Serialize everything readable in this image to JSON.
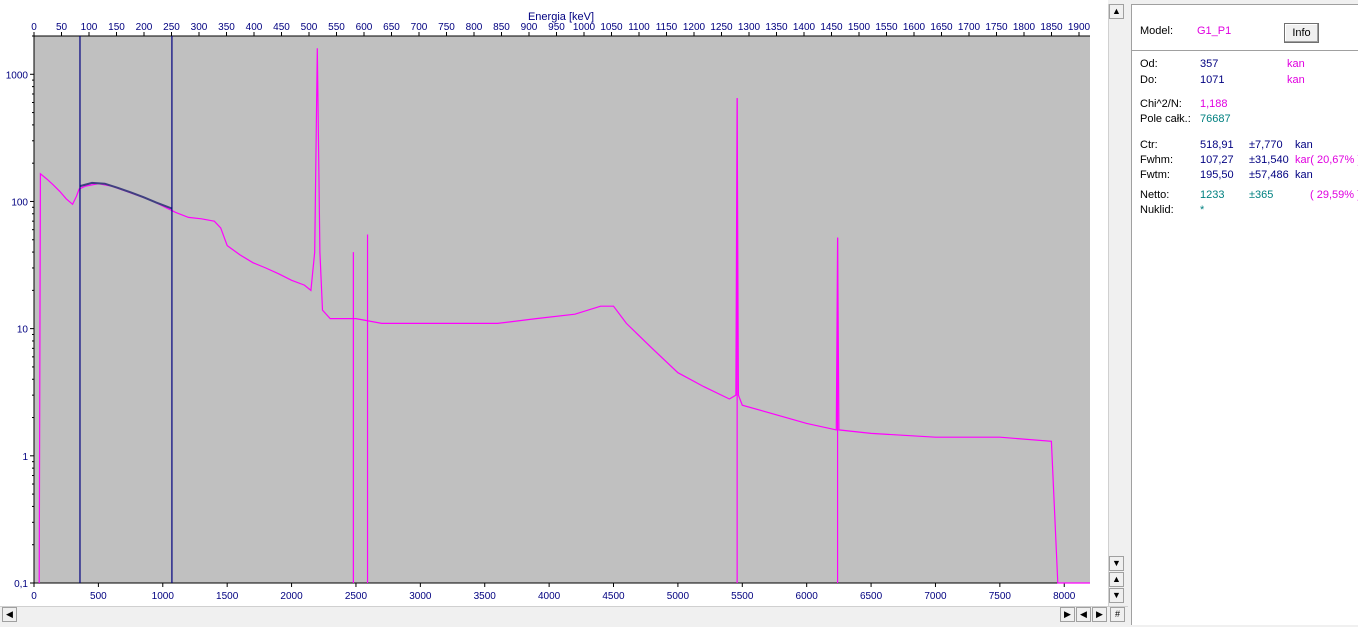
{
  "chart_data": {
    "type": "line",
    "title": "",
    "top_axis": {
      "label": "Energia [keV]",
      "range": [
        0,
        1920
      ],
      "ticks": [
        0,
        50,
        100,
        150,
        200,
        250,
        300,
        350,
        400,
        450,
        500,
        550,
        600,
        650,
        700,
        750,
        800,
        850,
        900,
        950,
        1000,
        1050,
        1100,
        1150,
        1200,
        1250,
        1300,
        1350,
        1400,
        1450,
        1500,
        1550,
        1600,
        1650,
        1700,
        1750,
        1800,
        1850,
        1900
      ]
    },
    "xlabel": "",
    "xlim": [
      0,
      8200
    ],
    "x_ticks": [
      0,
      500,
      1000,
      1500,
      2000,
      2500,
      3000,
      3500,
      4000,
      4500,
      5000,
      5500,
      6000,
      6500,
      7000,
      7500,
      8000
    ],
    "ylabel": "",
    "yscale": "log",
    "ylim": [
      0.1,
      2000
    ],
    "y_ticks": [
      {
        "value": 1000,
        "label": "1000"
      },
      {
        "value": 100,
        "label": "100"
      },
      {
        "value": 10,
        "label": "10"
      },
      {
        "value": 1,
        "label": "1"
      },
      {
        "value": 0.1,
        "label": "0,1"
      }
    ],
    "markers": [
      357,
      1071
    ],
    "background": "#c0c0c0",
    "series": [
      {
        "color": "#ff00ff",
        "points": [
          [
            40,
            0.1
          ],
          [
            50,
            165
          ],
          [
            100,
            150
          ],
          [
            150,
            135
          ],
          [
            200,
            120
          ],
          [
            250,
            105
          ],
          [
            300,
            95
          ],
          [
            330,
            110
          ],
          [
            350,
            125
          ],
          [
            400,
            132
          ],
          [
            500,
            138
          ],
          [
            600,
            132
          ],
          [
            700,
            122
          ],
          [
            800,
            112
          ],
          [
            900,
            103
          ],
          [
            1000,
            92
          ],
          [
            1100,
            82
          ],
          [
            1200,
            75
          ],
          [
            1300,
            73
          ],
          [
            1400,
            70
          ],
          [
            1450,
            62
          ],
          [
            1500,
            45
          ],
          [
            1600,
            38
          ],
          [
            1700,
            33
          ],
          [
            1800,
            30
          ],
          [
            1900,
            27
          ],
          [
            2000,
            24
          ],
          [
            2100,
            22
          ],
          [
            2150,
            20
          ],
          [
            2180,
            40
          ],
          [
            2200,
            1600
          ],
          [
            2220,
            40
          ],
          [
            2240,
            14
          ],
          [
            2300,
            12
          ],
          [
            2500,
            12
          ],
          [
            2700,
            11
          ],
          [
            3000,
            11
          ],
          [
            3300,
            11
          ],
          [
            3600,
            11
          ],
          [
            3900,
            12
          ],
          [
            4200,
            13
          ],
          [
            4400,
            15
          ],
          [
            4500,
            15
          ],
          [
            4600,
            11
          ],
          [
            4800,
            7
          ],
          [
            5000,
            4.5
          ],
          [
            5200,
            3.5
          ],
          [
            5400,
            2.8
          ],
          [
            5450,
            3
          ],
          [
            5460,
            650
          ],
          [
            5470,
            3
          ],
          [
            5500,
            2.5
          ],
          [
            6000,
            1.8
          ],
          [
            6230,
            1.6
          ],
          [
            6240,
            52
          ],
          [
            6250,
            1.6
          ],
          [
            6500,
            1.5
          ],
          [
            7000,
            1.4
          ],
          [
            7500,
            1.4
          ],
          [
            7900,
            1.3
          ],
          [
            7950,
            0.1
          ],
          [
            8200,
            0.1
          ]
        ]
      },
      {
        "color": "#404080",
        "points": [
          [
            357,
            132
          ],
          [
            450,
            140
          ],
          [
            550,
            138
          ],
          [
            650,
            128
          ],
          [
            750,
            118
          ],
          [
            850,
            108
          ],
          [
            950,
            98
          ],
          [
            1071,
            88
          ]
        ]
      }
    ],
    "annotation_lines": [
      {
        "x": 5460,
        "y_top": 650
      },
      {
        "x": 6240,
        "y_top": 52
      },
      {
        "x": 2590,
        "y_top": 55
      },
      {
        "x": 2480,
        "y_top": 40
      }
    ]
  },
  "panel": {
    "model_label": "Model:",
    "model_value": "G1_P1",
    "info_button": "Info",
    "od_label": "Od:",
    "od_value": "357",
    "od_unit": "kan",
    "do_label": "Do:",
    "do_value": "1071",
    "do_unit": "kan",
    "chi_label": "Chi^2/N:",
    "chi_value": "1,188",
    "pole_label": "Pole całk.:",
    "pole_value": "76687",
    "ctr_label": "Ctr:",
    "ctr_value": "518,91",
    "ctr_err": "±7,770",
    "ctr_unit": "kan",
    "fwhm_label": "Fwhm:",
    "fwhm_value": "107,27",
    "fwhm_err": "±31,540",
    "fwhm_unit": "kar( 20,67% )",
    "fwtm_label": "Fwtm:",
    "fwtm_value": "195,50",
    "fwtm_err": "±57,486",
    "fwtm_unit": "kan",
    "netto_label": "Netto:",
    "netto_value": "1233",
    "netto_err": "±365",
    "netto_pct": "( 29,59% )",
    "nuklid_label": "Nuklid:",
    "nuklid_value": "*"
  },
  "scroll": {
    "hash": "#"
  },
  "colors": {
    "spectrum": "#ff00ff",
    "marker": "#000080",
    "plot_bg": "#c0c0c0"
  }
}
